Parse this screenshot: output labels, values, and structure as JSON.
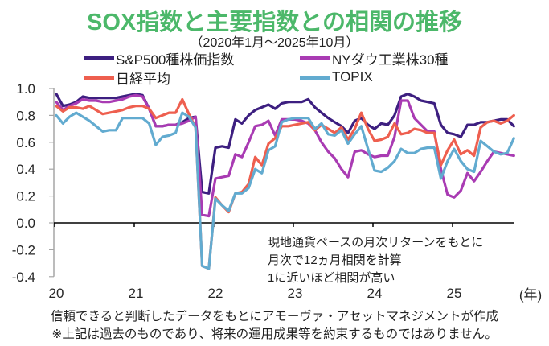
{
  "title": "SOX指数と主要指数との相関の推移",
  "subtitle": "（2020年1月～2025年10月）",
  "notes": [
    "現地通貨ベースの月次リターンをもとに",
    "月次で12ヵ月相関を計算",
    "1に近いほど相関が高い"
  ],
  "footer": [
    "信頼できると判断したデータをもとにアモーヴァ・アセットマネジメントが作成",
    "※上記は過去のものであり、将来の運用成果等を約束するものではありません。"
  ],
  "chart_data": {
    "type": "line",
    "title": "SOX指数と主要指数との相関の推移",
    "subtitle": "（2020年1月～2025年10月）",
    "xlabel": "(年)",
    "ylabel": "",
    "ylim": [
      -0.4,
      1.0
    ],
    "yticks": [
      "1.0",
      "0.8",
      "0.6",
      "0.4",
      "0.2",
      "0.0",
      "-0.2",
      "-0.4"
    ],
    "ytick_values": [
      1.0,
      0.8,
      0.6,
      0.4,
      0.2,
      0.0,
      -0.2,
      -0.4
    ],
    "xticks": [
      "20",
      "21",
      "22",
      "23",
      "24",
      "25"
    ],
    "x_start": "2020-01",
    "x_end": "2025-10",
    "x_frequency": "monthly",
    "grid": false,
    "legend_position": "top",
    "series": [
      {
        "name": "S&P500種株価指数",
        "color": "#3d1f80",
        "values": [
          0.96,
          0.87,
          0.88,
          0.9,
          0.94,
          0.93,
          0.93,
          0.93,
          0.93,
          0.93,
          0.94,
          0.95,
          0.96,
          0.95,
          0.85,
          0.72,
          0.72,
          0.73,
          0.73,
          0.75,
          0.78,
          0.79,
          0.23,
          0.22,
          0.56,
          0.57,
          0.56,
          0.77,
          0.74,
          0.8,
          0.84,
          0.86,
          0.88,
          0.85,
          0.89,
          0.9,
          0.9,
          0.9,
          0.92,
          0.86,
          0.82,
          0.78,
          0.75,
          0.72,
          0.67,
          0.76,
          0.78,
          0.73,
          0.7,
          0.74,
          0.73,
          0.8,
          0.94,
          0.96,
          0.94,
          0.91,
          0.9,
          0.89,
          0.73,
          0.67,
          0.66,
          0.64,
          0.73,
          0.73,
          0.75,
          0.75,
          0.76,
          0.77,
          0.77,
          0.72
        ]
      },
      {
        "name": "NYダウ工業株30種",
        "color": "#a93bb3",
        "values": [
          0.9,
          0.84,
          0.87,
          0.89,
          0.92,
          0.91,
          0.91,
          0.9,
          0.9,
          0.91,
          0.92,
          0.94,
          0.95,
          0.94,
          0.85,
          0.72,
          0.72,
          0.73,
          0.73,
          0.74,
          0.76,
          0.79,
          0.06,
          0.05,
          0.33,
          0.34,
          0.35,
          0.51,
          0.49,
          0.6,
          0.72,
          0.73,
          0.76,
          0.65,
          0.77,
          0.77,
          0.77,
          0.76,
          0.74,
          0.69,
          0.6,
          0.53,
          0.48,
          0.4,
          0.34,
          0.53,
          0.54,
          0.51,
          0.49,
          0.5,
          0.5,
          0.64,
          0.91,
          0.91,
          0.78,
          0.73,
          0.68,
          0.68,
          0.4,
          0.21,
          0.19,
          0.24,
          0.37,
          0.31,
          0.38,
          0.46,
          0.53,
          0.52,
          0.51,
          0.5
        ]
      },
      {
        "name": "日経平均",
        "color": "#ee5f4f",
        "values": [
          0.87,
          0.83,
          0.86,
          0.86,
          0.85,
          0.87,
          0.84,
          0.81,
          0.82,
          0.83,
          0.84,
          0.86,
          0.87,
          0.87,
          0.85,
          0.78,
          0.8,
          0.82,
          0.82,
          0.92,
          0.81,
          0.71,
          -0.32,
          -0.34,
          0.19,
          0.13,
          0.08,
          0.22,
          0.23,
          0.29,
          0.49,
          0.43,
          0.59,
          0.63,
          0.72,
          0.72,
          0.73,
          0.74,
          0.75,
          0.69,
          0.73,
          0.7,
          0.67,
          0.71,
          0.62,
          0.7,
          0.82,
          0.7,
          0.61,
          0.62,
          0.64,
          0.74,
          0.66,
          0.67,
          0.7,
          0.69,
          0.67,
          0.67,
          0.43,
          0.54,
          0.62,
          0.51,
          0.54,
          0.5,
          0.71,
          0.75,
          0.76,
          0.74,
          0.76,
          0.8
        ]
      },
      {
        "name": "TOPIX",
        "color": "#62abd0",
        "values": [
          0.8,
          0.74,
          0.79,
          0.82,
          0.79,
          0.76,
          0.72,
          0.68,
          0.69,
          0.69,
          0.78,
          0.78,
          0.78,
          0.78,
          0.74,
          0.58,
          0.64,
          0.65,
          0.67,
          0.82,
          0.79,
          0.71,
          -0.32,
          -0.34,
          0.18,
          0.13,
          0.09,
          0.22,
          0.22,
          0.26,
          0.4,
          0.37,
          0.54,
          0.57,
          0.75,
          0.77,
          0.78,
          0.78,
          0.78,
          0.7,
          0.74,
          0.66,
          0.65,
          0.69,
          0.59,
          0.66,
          0.72,
          0.55,
          0.39,
          0.38,
          0.41,
          0.46,
          0.55,
          0.52,
          0.52,
          0.55,
          0.56,
          0.56,
          0.33,
          0.46,
          0.55,
          0.46,
          0.4,
          0.38,
          0.61,
          0.57,
          0.53,
          0.51,
          0.52,
          0.63
        ]
      }
    ],
    "annotations": [
      "現地通貨ベースの月次リターンをもとに",
      "月次で12ヵ月相関を計算",
      "1に近いほど相関が高い"
    ]
  }
}
